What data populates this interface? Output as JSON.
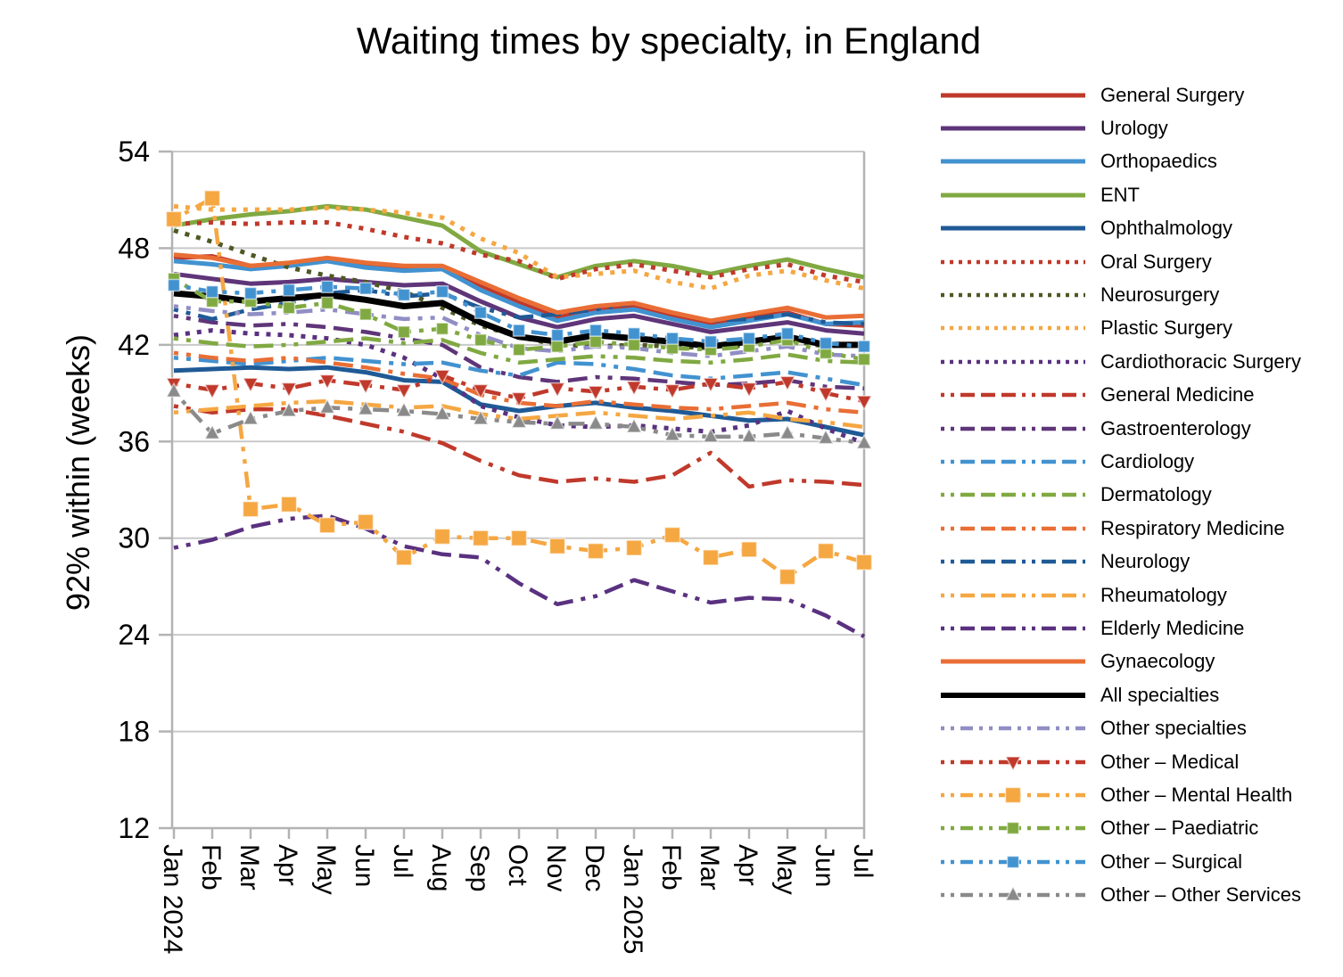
{
  "title": "Waiting times by specialty, in England",
  "y_axis": {
    "label": "92% within (weeks)",
    "ticks": [
      "54",
      "48",
      "42",
      "36",
      "30",
      "24",
      "18",
      "12"
    ]
  },
  "x_axis": {
    "labels": [
      "Jan 2024",
      "Feb",
      "Mar",
      "Apr",
      "May",
      "Jun",
      "Jul",
      "Aug",
      "Sep",
      "Oct",
      "Nov",
      "Dec",
      "Jan 2025",
      "Feb",
      "Mar",
      "Apr",
      "May",
      "Jun",
      "Jul"
    ]
  },
  "grid_color": "#c9c9c9",
  "axis_color": "#b3b3b3",
  "chart_data": {
    "type": "line",
    "title": "Waiting times by specialty, in England",
    "xlabel": "",
    "ylabel": "92% within (weeks)",
    "ylim": [
      12,
      54
    ],
    "grid": "horizontal",
    "legend_position": "right",
    "categories": [
      "Jan 2024",
      "Feb",
      "Mar",
      "Apr",
      "May",
      "Jun",
      "Jul",
      "Aug",
      "Sep",
      "Oct",
      "Nov",
      "Dec",
      "Jan 2025",
      "Feb",
      "Mar",
      "Apr",
      "May",
      "Jun",
      "Jul"
    ],
    "series": [
      {
        "name": "General Surgery",
        "color": "#c0392b",
        "style": "solid",
        "marker": null,
        "values": [
          47.4,
          47.5,
          46.9,
          47.0,
          47.3,
          47.0,
          46.7,
          46.8,
          45.7,
          44.6,
          43.7,
          44.2,
          44.4,
          43.8,
          43.3,
          43.7,
          44.0,
          43.3,
          43.2
        ]
      },
      {
        "name": "Urology",
        "color": "#5f3579",
        "style": "solid",
        "marker": null,
        "values": [
          46.4,
          46.1,
          45.8,
          45.9,
          46.1,
          45.9,
          45.7,
          45.8,
          44.7,
          43.7,
          43.1,
          43.6,
          43.8,
          43.3,
          42.8,
          43.1,
          43.4,
          42.9,
          42.7
        ]
      },
      {
        "name": "Orthopaedics",
        "color": "#4292d0",
        "style": "solid",
        "marker": null,
        "values": [
          47.2,
          47.0,
          46.7,
          46.9,
          47.2,
          46.8,
          46.6,
          46.7,
          45.4,
          44.4,
          43.5,
          44.0,
          44.2,
          43.6,
          43.1,
          43.5,
          43.9,
          43.3,
          43.4
        ]
      },
      {
        "name": "ENT",
        "color": "#80a942",
        "style": "solid",
        "marker": null,
        "values": [
          49.4,
          49.8,
          50.1,
          50.3,
          50.6,
          50.4,
          49.9,
          49.4,
          47.8,
          47.0,
          46.2,
          46.9,
          47.2,
          46.9,
          46.4,
          46.9,
          47.3,
          46.7,
          46.2
        ]
      },
      {
        "name": "Ophthalmology",
        "color": "#1f5a96",
        "style": "solid",
        "marker": null,
        "values": [
          40.4,
          40.5,
          40.6,
          40.5,
          40.6,
          40.3,
          39.8,
          39.7,
          38.3,
          37.9,
          38.2,
          38.4,
          38.1,
          37.9,
          37.6,
          37.3,
          37.4,
          36.9,
          36.4
        ]
      },
      {
        "name": "Oral Surgery",
        "color": "#c0392b",
        "style": "dotted",
        "marker": null,
        "values": [
          49.5,
          49.6,
          49.5,
          49.6,
          49.6,
          49.2,
          48.7,
          48.3,
          47.6,
          47.2,
          46.1,
          46.7,
          47.0,
          46.6,
          46.2,
          46.7,
          47.0,
          46.3,
          45.9
        ]
      },
      {
        "name": "Neurosurgery",
        "color": "#4e5823",
        "style": "dotted",
        "marker": null,
        "values": [
          49.1,
          48.4,
          47.6,
          46.8,
          46.3,
          45.9,
          45.3,
          44.3,
          43.2,
          42.5,
          42.0,
          41.9,
          42.0,
          41.9,
          41.8,
          42.0,
          42.3,
          41.9,
          42.1
        ]
      },
      {
        "name": "Plastic Surgery",
        "color": "#f5a742",
        "style": "dotted",
        "marker": null,
        "values": [
          50.6,
          50.4,
          50.4,
          50.4,
          50.5,
          50.4,
          50.2,
          49.9,
          48.6,
          47.7,
          46.2,
          46.4,
          46.6,
          45.9,
          45.5,
          46.3,
          46.6,
          46.0,
          45.5
        ]
      },
      {
        "name": "Cardiothoracic Surgery",
        "color": "#5a3180",
        "style": "dotted",
        "marker": null,
        "values": [
          42.6,
          42.9,
          42.7,
          42.6,
          42.4,
          42.0,
          41.2,
          39.9,
          38.2,
          37.5,
          37.0,
          36.9,
          37.0,
          36.8,
          36.6,
          37.0,
          37.9,
          36.8,
          35.9
        ]
      },
      {
        "name": "General Medicine",
        "color": "#c0392b",
        "style": "dashdotdot",
        "marker": null,
        "values": [
          38.2,
          37.8,
          38.0,
          38.0,
          37.6,
          37.1,
          36.6,
          35.9,
          34.8,
          33.9,
          33.5,
          33.7,
          33.5,
          33.9,
          35.3,
          33.2,
          33.6,
          33.5,
          33.3
        ]
      },
      {
        "name": "Gastroenterology",
        "color": "#5f3579",
        "style": "dashdotdot",
        "marker": null,
        "values": [
          43.8,
          43.4,
          43.2,
          43.3,
          43.1,
          42.8,
          42.4,
          42.0,
          40.6,
          40.0,
          39.7,
          40.0,
          39.9,
          39.7,
          39.5,
          39.6,
          39.8,
          39.4,
          39.3
        ]
      },
      {
        "name": "Cardiology",
        "color": "#4292d0",
        "style": "dashdotdot",
        "marker": null,
        "values": [
          41.2,
          41.0,
          40.8,
          41.0,
          41.2,
          41.0,
          40.8,
          40.9,
          40.4,
          40.1,
          40.9,
          40.8,
          40.5,
          40.1,
          39.9,
          40.1,
          40.3,
          39.9,
          39.5
        ]
      },
      {
        "name": "Dermatology",
        "color": "#80a942",
        "style": "dashdotdot",
        "marker": null,
        "values": [
          42.4,
          42.1,
          41.9,
          42.0,
          42.2,
          42.4,
          42.1,
          42.3,
          41.5,
          40.9,
          41.1,
          41.3,
          41.2,
          41.0,
          40.9,
          41.1,
          41.4,
          41.0,
          40.9
        ]
      },
      {
        "name": "Respiratory Medicine",
        "color": "#e96e35",
        "style": "dashdotdot",
        "marker": null,
        "values": [
          41.5,
          41.2,
          41.0,
          41.2,
          40.9,
          40.6,
          40.2,
          39.9,
          38.9,
          38.4,
          38.2,
          38.5,
          38.3,
          38.1,
          38.0,
          38.2,
          38.4,
          38.0,
          37.8
        ]
      },
      {
        "name": "Neurology",
        "color": "#1f5a96",
        "style": "dashdotdot",
        "marker": null,
        "values": [
          44.2,
          43.6,
          44.2,
          44.6,
          45.2,
          45.4,
          45.0,
          45.2,
          44.3,
          43.7,
          43.9,
          44.2,
          44.6,
          44.0,
          43.5,
          43.6,
          43.9,
          43.4,
          43.3
        ]
      },
      {
        "name": "Rheumatology",
        "color": "#f5a742",
        "style": "dashdotdot",
        "marker": null,
        "values": [
          37.8,
          38.0,
          38.2,
          38.4,
          38.5,
          38.3,
          38.1,
          38.2,
          37.7,
          37.4,
          37.6,
          37.8,
          37.6,
          37.4,
          37.6,
          37.8,
          37.4,
          37.2,
          36.9
        ]
      },
      {
        "name": "Elderly Medicine",
        "color": "#5a3180",
        "style": "dashdotdot",
        "marker": null,
        "values": [
          29.4,
          29.9,
          30.7,
          31.2,
          31.4,
          30.6,
          29.5,
          29.0,
          28.8,
          27.2,
          25.9,
          26.4,
          27.4,
          26.7,
          26.0,
          26.3,
          26.2,
          25.2,
          23.9
        ]
      },
      {
        "name": "Gynaecology",
        "color": "#e96e35",
        "style": "solid",
        "marker": null,
        "values": [
          47.6,
          47.4,
          46.9,
          47.1,
          47.4,
          47.1,
          46.9,
          46.9,
          45.9,
          44.9,
          44.0,
          44.4,
          44.6,
          44.0,
          43.5,
          43.9,
          44.3,
          43.7,
          43.8
        ]
      },
      {
        "name": "All specialties",
        "color": "#000000",
        "style": "solid",
        "width": 7,
        "marker": null,
        "values": [
          45.2,
          45.0,
          44.7,
          44.9,
          45.1,
          44.8,
          44.4,
          44.6,
          43.4,
          42.5,
          42.2,
          42.6,
          42.4,
          42.2,
          41.9,
          42.2,
          42.5,
          42.0,
          42.0
        ]
      },
      {
        "name": "Other specialties",
        "color": "#908ec4",
        "style": "dotdash",
        "marker": null,
        "values": [
          44.4,
          44.1,
          43.9,
          44.0,
          44.2,
          43.9,
          43.6,
          43.7,
          42.6,
          41.8,
          41.6,
          41.9,
          41.8,
          41.5,
          41.3,
          41.6,
          41.9,
          41.4,
          41.3
        ]
      },
      {
        "name": "Other – Medical",
        "color": "#c0392b",
        "style": "dotdash",
        "marker": "triangle-down",
        "values": [
          39.6,
          39.2,
          39.6,
          39.3,
          39.8,
          39.5,
          39.2,
          40.1,
          39.2,
          38.7,
          39.3,
          39.1,
          39.4,
          39.2,
          39.6,
          39.3,
          39.7,
          39.0,
          38.5
        ]
      },
      {
        "name": "Other – Mental Health",
        "color": "#f5a742",
        "style": "dotdash",
        "marker": "square-lg",
        "values": [
          49.8,
          51.1,
          31.8,
          32.1,
          30.8,
          31.0,
          28.8,
          30.1,
          30.0,
          30.0,
          29.5,
          29.2,
          29.4,
          30.2,
          28.8,
          29.3,
          27.6,
          29.2,
          28.5
        ]
      },
      {
        "name": "Other – Paediatric",
        "color": "#80a942",
        "style": "dotdash",
        "marker": "square",
        "values": [
          46.1,
          44.7,
          44.7,
          44.3,
          44.6,
          43.9,
          42.8,
          43.0,
          42.3,
          41.7,
          41.9,
          42.2,
          42.0,
          41.8,
          41.7,
          41.9,
          42.3,
          41.5,
          41.1
        ]
      },
      {
        "name": "Other – Surgical",
        "color": "#4292d0",
        "style": "dotdash",
        "marker": "square",
        "values": [
          45.7,
          45.3,
          45.2,
          45.4,
          45.6,
          45.5,
          45.1,
          45.3,
          44.0,
          42.9,
          42.6,
          42.9,
          42.7,
          42.4,
          42.2,
          42.4,
          42.7,
          42.1,
          41.9
        ]
      },
      {
        "name": "Other – Other Services",
        "color": "#8a8a8a",
        "style": "dotdash",
        "marker": "triangle-up",
        "values": [
          39.1,
          36.5,
          37.4,
          37.9,
          38.1,
          38.0,
          37.9,
          37.7,
          37.4,
          37.2,
          37.1,
          37.1,
          36.9,
          36.4,
          36.3,
          36.3,
          36.5,
          36.2,
          35.9
        ]
      }
    ]
  }
}
